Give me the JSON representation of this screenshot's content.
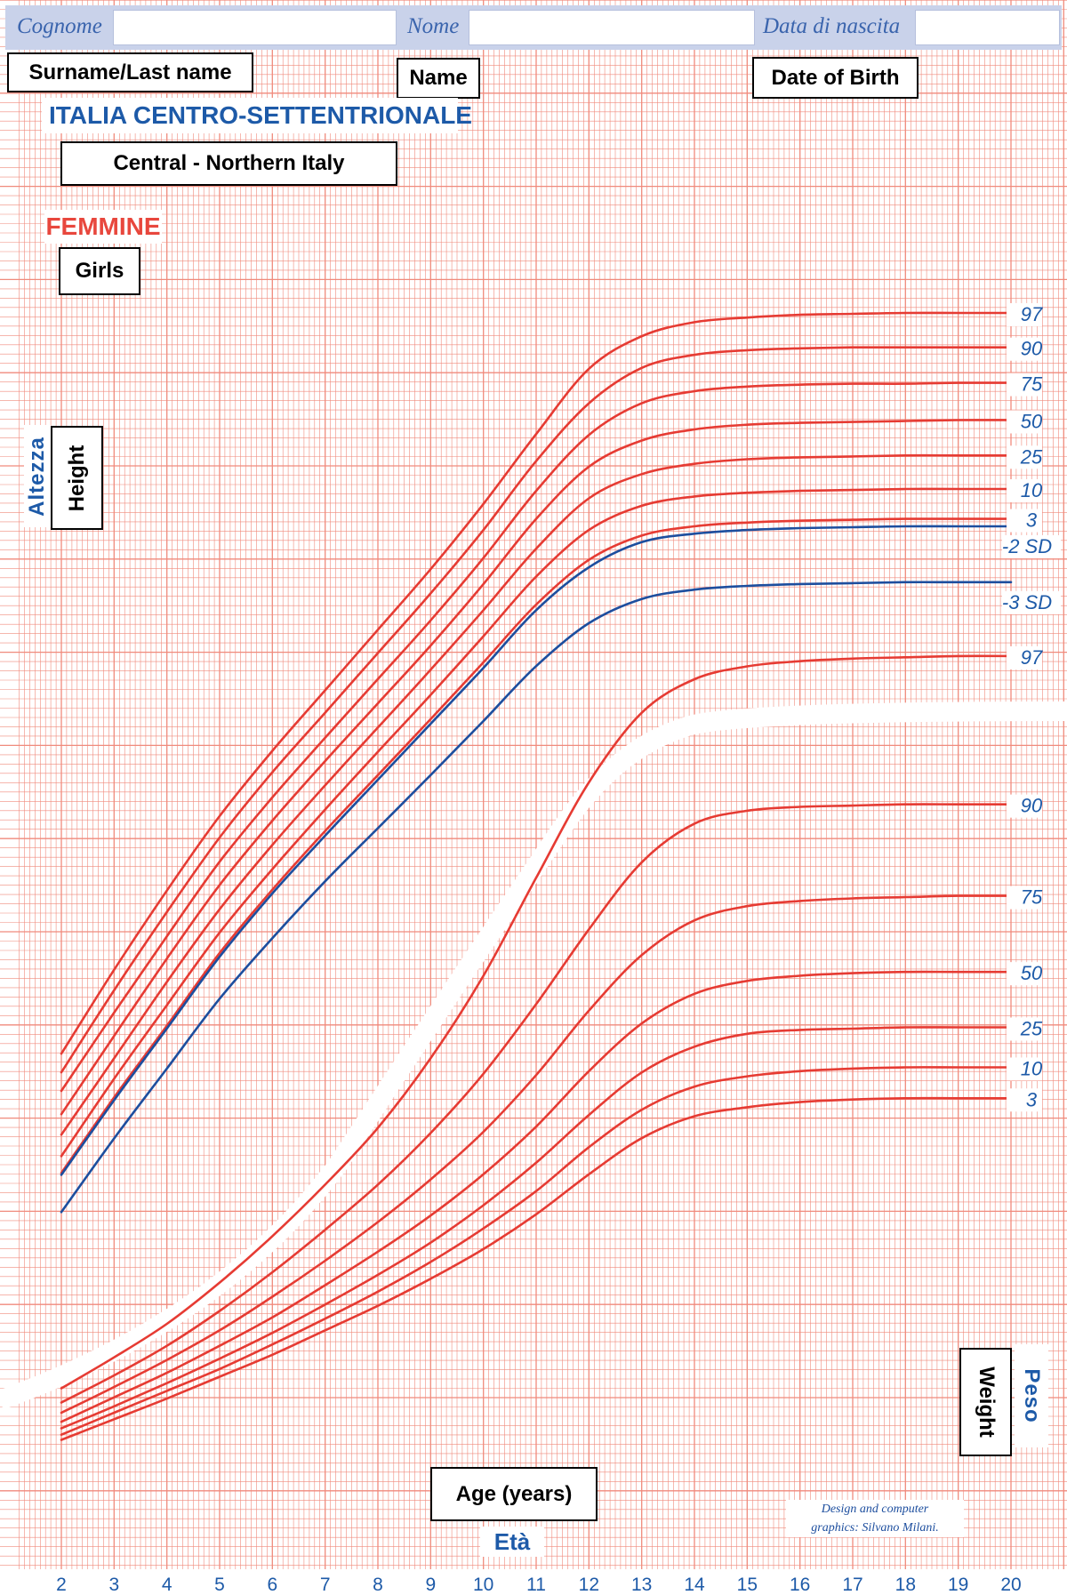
{
  "header": {
    "surname_label": "Cognome",
    "name_label": "Nome",
    "dob_label": "Data di nascita"
  },
  "boxes": {
    "surname": "Surname/Last name",
    "name": "Name",
    "dob": "Date of Birth",
    "region_en": "Central - Northern Italy",
    "girls": "Girls",
    "height": "Height",
    "weight": "Weight",
    "age": "Age (years)"
  },
  "titles": {
    "region": "ITALIA CENTRO-SETTENTRIONALE",
    "sex": "FEMMINE",
    "height_it": "Altezza",
    "weight_it": "Peso",
    "age_it": "Età"
  },
  "credit": {
    "line1": "Design and computer",
    "line2": "graphics: Silvano Milani."
  },
  "colors": {
    "grid": "#f08a7c",
    "percentile": "#e63b33",
    "sd": "#1d4e9e",
    "accent_blue": "#1d5aa8",
    "accent_red": "#e8473d"
  },
  "chart_data": {
    "type": "line",
    "x": [
      2,
      3,
      4,
      5,
      6,
      7,
      8,
      9,
      10,
      11,
      12,
      13,
      14,
      15,
      16,
      17,
      18,
      19,
      20
    ],
    "x_ticks": [
      "2",
      "3",
      "4",
      "5",
      "6",
      "7",
      "8",
      "9",
      "10",
      "11",
      "12",
      "13",
      "14",
      "15",
      "16",
      "17",
      "18",
      "19",
      "20"
    ],
    "xlim": [
      2,
      20
    ],
    "xlabel": "Età",
    "grid": true,
    "panels": [
      {
        "name": "height",
        "label": "Altezza",
        "series": [
          {
            "name": "97",
            "kind": "percentile",
            "values": [
              96.0,
              105.0,
              113.5,
              121.5,
              128.5,
              135.0,
              141.5,
              148.0,
              155.0,
              162.5,
              169.5,
              173.0,
              174.5,
              175.0,
              175.3,
              175.4,
              175.5,
              175.5,
              175.5
            ]
          },
          {
            "name": "90",
            "kind": "percentile",
            "values": [
              94.0,
              102.8,
              111.2,
              119.2,
              126.2,
              132.6,
              139.0,
              145.4,
              152.2,
              159.6,
              165.8,
              169.6,
              171.0,
              171.5,
              171.7,
              171.8,
              171.8,
              171.8,
              171.8
            ]
          },
          {
            "name": "75",
            "kind": "percentile",
            "values": [
              92.0,
              100.4,
              108.6,
              116.6,
              123.5,
              129.9,
              136.2,
              142.5,
              149.2,
              156.4,
              162.4,
              165.8,
              167.1,
              167.6,
              167.8,
              167.9,
              167.9,
              168.0,
              168.0
            ]
          },
          {
            "name": "50",
            "kind": "percentile",
            "values": [
              89.5,
              97.9,
              106.2,
              114.1,
              121.0,
              127.4,
              133.6,
              139.8,
              146.4,
              153.4,
              159.0,
              161.8,
              163.0,
              163.5,
              163.7,
              163.8,
              163.9,
              164.0,
              164.0
            ]
          },
          {
            "name": "25",
            "kind": "percentile",
            "values": [
              87.3,
              95.5,
              103.7,
              111.5,
              118.4,
              124.8,
              131.0,
              137.2,
              143.6,
              150.2,
              155.6,
              158.2,
              159.3,
              159.8,
              160.0,
              160.1,
              160.2,
              160.2,
              160.2
            ]
          },
          {
            "name": "10",
            "kind": "percentile",
            "values": [
              85.0,
              93.3,
              101.2,
              109.0,
              115.8,
              122.2,
              128.4,
              134.5,
              140.8,
              147.2,
              152.2,
              154.8,
              155.8,
              156.2,
              156.4,
              156.5,
              156.6,
              156.6,
              156.6
            ]
          },
          {
            "name": "3",
            "kind": "percentile",
            "values": [
              83.2,
              91.3,
              99.0,
              106.8,
              113.6,
              119.9,
              125.9,
              131.9,
              138.0,
              144.2,
              149.0,
              151.6,
              152.6,
              153.0,
              153.2,
              153.3,
              153.4,
              153.4,
              153.4
            ]
          },
          {
            "name": "-2 SD",
            "kind": "sd",
            "values": [
              83.0,
              91.0,
              98.7,
              106.4,
              113.2,
              119.4,
              125.4,
              131.4,
              137.4,
              143.6,
              148.2,
              150.9,
              151.8,
              152.2,
              152.4,
              152.5,
              152.6,
              152.6,
              152.6
            ]
          },
          {
            "name": "-3 SD",
            "kind": "sd",
            "values": [
              79.0,
              86.9,
              94.4,
              101.9,
              108.4,
              114.5,
              120.2,
              125.9,
              131.7,
              137.6,
              142.2,
              144.8,
              145.8,
              146.2,
              146.4,
              146.5,
              146.6,
              146.6,
              146.6
            ]
          }
        ]
      },
      {
        "name": "weight",
        "label": "Peso",
        "series": [
          {
            "name": "97",
            "kind": "percentile",
            "values": [
              16.0,
              18.4,
              21.0,
              24.2,
              27.8,
              31.8,
              36.2,
              41.6,
              48.0,
              55.6,
              63.0,
              68.4,
              71.0,
              72.0,
              72.4,
              72.6,
              72.7,
              72.8,
              72.8
            ]
          },
          {
            "name": "90",
            "kind": "percentile",
            "values": [
              14.9,
              17.0,
              19.3,
              22.0,
              25.0,
              28.3,
              31.8,
              35.8,
              40.4,
              45.8,
              51.6,
              56.8,
              59.8,
              60.8,
              61.1,
              61.2,
              61.3,
              61.3,
              61.3
            ]
          },
          {
            "name": "75",
            "kind": "percentile",
            "values": [
              14.1,
              16.1,
              18.2,
              20.5,
              23.1,
              25.9,
              28.9,
              32.2,
              35.9,
              40.3,
              45.3,
              49.6,
              52.3,
              53.4,
              53.8,
              54.0,
              54.1,
              54.2,
              54.2
            ]
          },
          {
            "name": "50",
            "kind": "percentile",
            "values": [
              13.4,
              15.3,
              17.2,
              19.3,
              21.5,
              24.0,
              26.6,
              29.4,
              32.6,
              36.3,
              40.6,
              44.3,
              46.6,
              47.6,
              48.0,
              48.2,
              48.3,
              48.3,
              48.3
            ]
          },
          {
            "name": "25",
            "kind": "percentile",
            "values": [
              12.9,
              14.6,
              16.4,
              18.3,
              20.3,
              22.5,
              24.8,
              27.3,
              30.2,
              33.5,
              37.2,
              40.5,
              42.5,
              43.5,
              43.8,
              43.9,
              44.0,
              44.0,
              44.0
            ]
          },
          {
            "name": "10",
            "kind": "percentile",
            "values": [
              12.4,
              14.1,
              15.8,
              17.5,
              19.4,
              21.4,
              23.5,
              25.8,
              28.4,
              31.3,
              34.7,
              37.6,
              39.4,
              40.2,
              40.6,
              40.8,
              40.9,
              40.9,
              40.9
            ]
          },
          {
            "name": "3",
            "kind": "percentile",
            "values": [
              12.0,
              13.6,
              15.2,
              16.9,
              18.6,
              20.5,
              22.4,
              24.5,
              26.8,
              29.5,
              32.6,
              35.4,
              37.1,
              37.8,
              38.2,
              38.4,
              38.5,
              38.5,
              38.5
            ]
          }
        ]
      }
    ]
  }
}
